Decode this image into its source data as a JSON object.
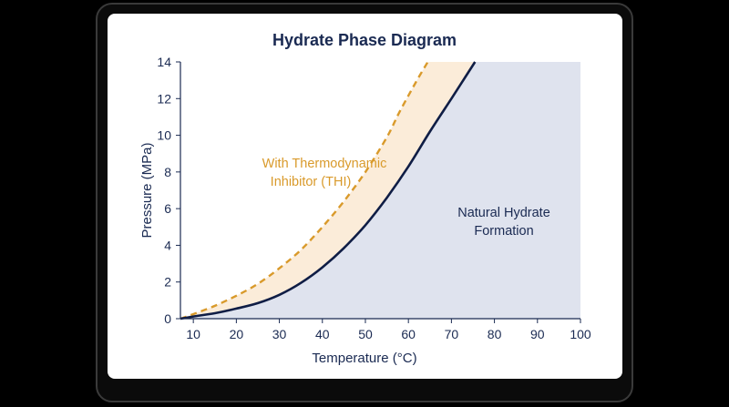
{
  "chart_data": {
    "type": "line",
    "title": "Hydrate Phase Diagram",
    "xlabel": "Temperature (°C)",
    "ylabel": "Pressure (MPa)",
    "xlim": [
      7,
      100
    ],
    "ylim": [
      0,
      14
    ],
    "xticks": [
      10,
      20,
      30,
      40,
      50,
      60,
      70,
      80,
      90,
      100
    ],
    "yticks": [
      0,
      2,
      4,
      6,
      8,
      10,
      12,
      14
    ],
    "grid": false,
    "series": [
      {
        "name": "",
        "style": "solid",
        "color": "#0f1d45",
        "x": [
          7,
          10,
          15,
          20,
          25,
          30,
          35,
          40,
          45,
          50,
          55,
          60,
          65,
          70,
          75.5
        ],
        "y": [
          0,
          0.12,
          0.3,
          0.55,
          0.85,
          1.3,
          1.95,
          2.8,
          3.85,
          5.1,
          6.6,
          8.3,
          10.2,
          12.0,
          14.0
        ]
      },
      {
        "name": "",
        "style": "dashed",
        "color": "#d99a2b",
        "x": [
          7,
          10,
          15,
          20,
          25,
          30,
          35,
          40,
          45,
          50,
          55,
          58,
          62,
          64.5
        ],
        "y": [
          0,
          0.25,
          0.7,
          1.25,
          1.9,
          2.75,
          3.75,
          5.0,
          6.4,
          8.0,
          9.9,
          11.3,
          13.0,
          14.0
        ]
      }
    ],
    "regions": [
      {
        "label": "Natural Hydrate Formation",
        "color": "#dfe3ee"
      },
      {
        "label": "THI band",
        "color": "#fbecd9"
      }
    ],
    "annotations": [
      {
        "lines": [
          "With Thermodynamic",
          "Inhibitor (THI)"
        ],
        "color": "#d99a2b"
      },
      {
        "lines": [
          "Natural Hydrate",
          "Formation"
        ],
        "color": "#1a2a52"
      }
    ]
  }
}
